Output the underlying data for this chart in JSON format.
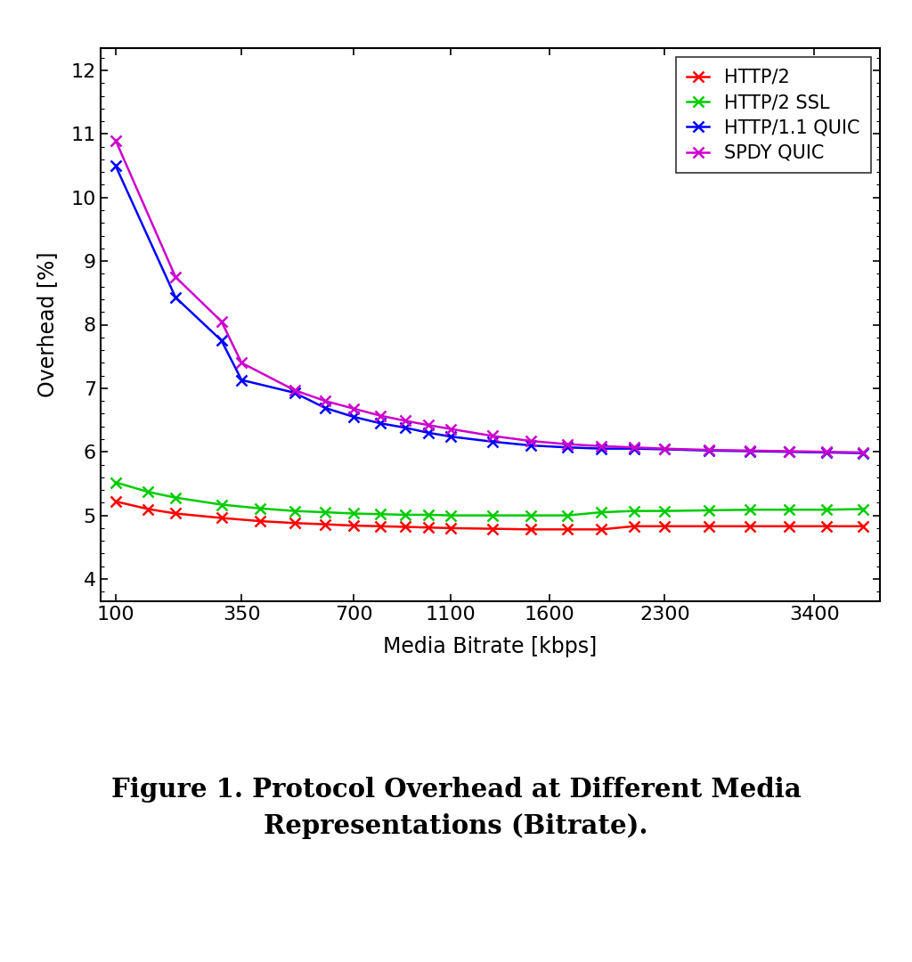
{
  "x_ticks_pos": [
    100,
    350,
    700,
    1100,
    1600,
    2300,
    3400
  ],
  "x_ticks_labels": [
    "100",
    "350",
    "700",
    "1100",
    "1600",
    "2300",
    "3400"
  ],
  "http2_x": [
    100,
    150,
    200,
    300,
    400,
    500,
    600,
    700,
    800,
    900,
    1000,
    1100,
    1300,
    1500,
    1700,
    1900,
    2100,
    2300,
    2600,
    2900,
    3200,
    3500,
    3800
  ],
  "http2_y": [
    5.22,
    5.1,
    5.03,
    4.96,
    4.91,
    4.88,
    4.86,
    4.84,
    4.83,
    4.82,
    4.81,
    4.8,
    4.79,
    4.78,
    4.78,
    4.78,
    4.83,
    4.83,
    4.83,
    4.83,
    4.83,
    4.83,
    4.83
  ],
  "http2ssl_x": [
    100,
    150,
    200,
    300,
    400,
    500,
    600,
    700,
    800,
    900,
    1000,
    1100,
    1300,
    1500,
    1700,
    1900,
    2100,
    2300,
    2600,
    2900,
    3200,
    3500,
    3800
  ],
  "http2ssl_y": [
    5.52,
    5.37,
    5.28,
    5.17,
    5.11,
    5.07,
    5.05,
    5.03,
    5.02,
    5.01,
    5.01,
    5.0,
    5.0,
    5.0,
    5.0,
    5.05,
    5.07,
    5.07,
    5.08,
    5.09,
    5.09,
    5.09,
    5.1
  ],
  "http11quic_x": [
    100,
    200,
    300,
    350,
    500,
    600,
    700,
    800,
    900,
    1000,
    1100,
    1300,
    1500,
    1700,
    1900,
    2100,
    2300,
    2600,
    2900,
    3200,
    3500,
    3800
  ],
  "http11quic_y": [
    10.5,
    8.43,
    7.75,
    7.13,
    6.93,
    6.69,
    6.55,
    6.45,
    6.38,
    6.3,
    6.24,
    6.16,
    6.1,
    6.07,
    6.05,
    6.05,
    6.04,
    6.02,
    6.01,
    6.0,
    5.99,
    5.98
  ],
  "spdyquic_x": [
    100,
    200,
    300,
    350,
    500,
    600,
    700,
    800,
    900,
    1000,
    1100,
    1300,
    1500,
    1700,
    1900,
    2100,
    2300,
    2600,
    2900,
    3200,
    3500,
    3800
  ],
  "spdyquic_y": [
    10.9,
    8.75,
    8.05,
    7.4,
    6.97,
    6.8,
    6.68,
    6.57,
    6.49,
    6.42,
    6.36,
    6.25,
    6.17,
    6.12,
    6.09,
    6.07,
    6.05,
    6.03,
    6.02,
    6.01,
    6.0,
    5.99
  ],
  "color_http2": "#FF0000",
  "color_http2ssl": "#00CC00",
  "color_http11quic": "#0000FF",
  "color_spdyquic": "#CC00CC",
  "yticks": [
    4,
    5,
    6,
    7,
    8,
    9,
    10,
    11,
    12
  ],
  "ylim": [
    3.65,
    12.35
  ],
  "xlim_left": 80,
  "xlim_right": 3950,
  "xlabel": "Media Bitrate [kbps]",
  "ylabel": "Overhead [%]",
  "legend_labels": [
    "HTTP/2",
    "HTTP/2 SSL",
    "HTTP/1.1 QUIC",
    "SPDY QUIC"
  ],
  "caption_line1": "Figure 1. Protocol Overhead at Different Media",
  "caption_line2": "Representations (Bitrate).",
  "linewidth": 1.8,
  "markersize": 8,
  "markeredgewidth": 1.8
}
